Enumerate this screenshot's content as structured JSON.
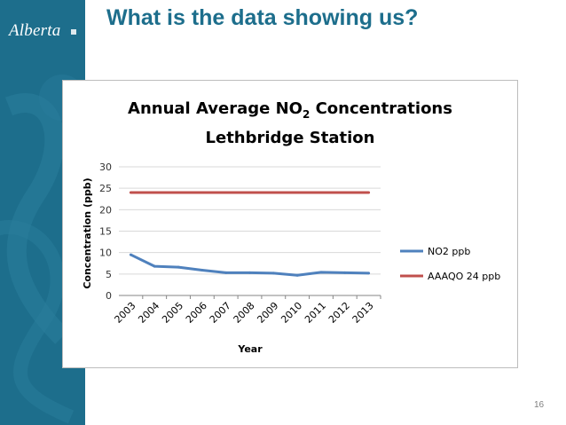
{
  "slide": {
    "title": "What is the data showing us?",
    "logo_text": "Alberta",
    "page_number": "16"
  },
  "colors": {
    "brand_blue": "#1d6e8c",
    "no2_series": "#4f81bd",
    "aaaqo_series": "#c0504d"
  },
  "chart_data": {
    "type": "line",
    "title": "Annual Average NO2 Concentrations",
    "title_main": "Annual Average NO",
    "title_subscript": "2",
    "title_suffix": " Concentrations",
    "subtitle": "Lethbridge Station",
    "xlabel": "Year",
    "ylabel": "Concentration  (ppb)",
    "categories": [
      "2003",
      "2004",
      "2005",
      "2006",
      "2007",
      "2008",
      "2009",
      "2010",
      "2011",
      "2012",
      "2013"
    ],
    "ylim": [
      0,
      30
    ],
    "yticks": [
      0,
      5,
      10,
      15,
      20,
      25,
      30
    ],
    "ytick_labels": [
      "0",
      "5",
      "10",
      "15",
      "20",
      "25",
      "30"
    ],
    "grid": true,
    "legend_position": "right",
    "series": [
      {
        "name": "NO2 ppb",
        "color": "#4f81bd",
        "values": [
          9.5,
          6.8,
          6.6,
          5.9,
          5.3,
          5.3,
          5.2,
          4.7,
          5.4,
          5.3,
          5.2
        ]
      },
      {
        "name": "AAAQO 24 ppb",
        "color": "#c0504d",
        "values": [
          24,
          24,
          24,
          24,
          24,
          24,
          24,
          24,
          24,
          24,
          24
        ]
      }
    ]
  }
}
